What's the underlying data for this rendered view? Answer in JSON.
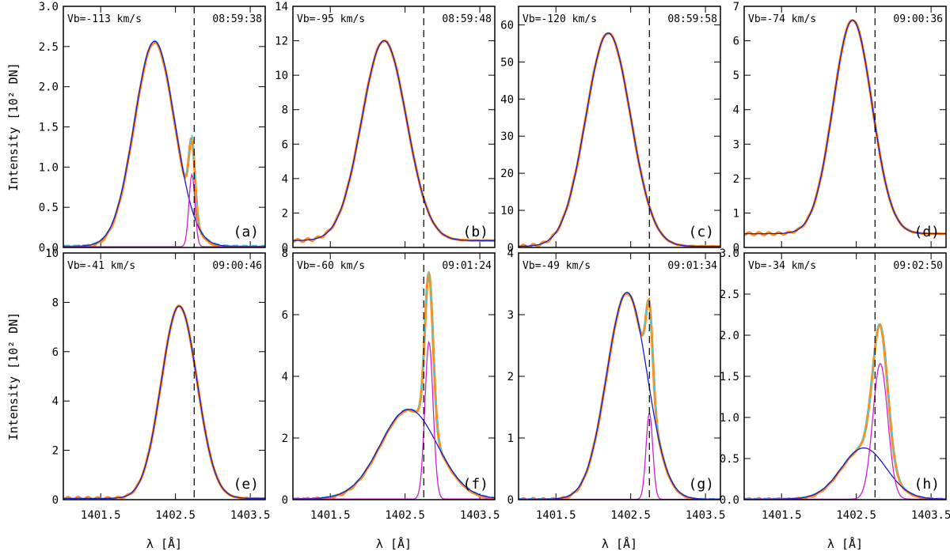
{
  "figure": {
    "xlabel": "λ [Å]",
    "ylabel": "Intensity [10² DN]",
    "x_tick_labels": [
      "1401.5",
      "1402.5",
      "1403.5"
    ],
    "colors": {
      "observed": "#ff8c1a",
      "fit_total": "#3fd0e0",
      "component_blue": "#1a1acc",
      "component_red": "#cc22cc",
      "dashed": "#000000"
    }
  },
  "chart_data": [
    {
      "type": "line",
      "panel": "(a)",
      "vb": "Vb=-113 km/s",
      "time": "08:59:38",
      "ylim": [
        0,
        3.0
      ],
      "yticks": [
        "0.0",
        "0.5",
        "1.0",
        "1.5",
        "2.0",
        "2.5",
        "3.0"
      ],
      "xlim": [
        1401.0,
        1403.7
      ],
      "xlabel": "λ [Å]",
      "ylabel": "Intensity [10² DN]",
      "dashed_x": 1402.75,
      "baseline": 0.05,
      "blue": {
        "amp": 2.55,
        "center": 1402.22,
        "width": 0.27
      },
      "red": {
        "amp": 0.9,
        "center": 1402.72,
        "width": 0.04
      },
      "offset": 0.0,
      "series": [
        {
          "name": "observed",
          "color": "#ff8c1a"
        },
        {
          "name": "fit_total",
          "color": "#3fd0e0"
        },
        {
          "name": "component_blue",
          "color": "#1a1acc"
        },
        {
          "name": "component_red",
          "color": "#cc22cc"
        }
      ]
    },
    {
      "type": "line",
      "panel": "(b)",
      "vb": "Vb=-95 km/s",
      "time": "08:59:48",
      "ylim": [
        0,
        14
      ],
      "yticks": [
        "0",
        "2",
        "4",
        "6",
        "8",
        "10",
        "12",
        "14"
      ],
      "xlim": [
        1401.0,
        1403.7
      ],
      "dashed_x": 1402.75,
      "baseline": 0.4,
      "blue": {
        "amp": 11.6,
        "center": 1402.22,
        "width": 0.3
      },
      "red": null,
      "offset": 0.4,
      "series": [
        {
          "name": "observed",
          "color": "#ff8c1a"
        },
        {
          "name": "component_blue",
          "color": "#1a1acc"
        }
      ]
    },
    {
      "type": "line",
      "panel": "(c)",
      "vb": "Vb=-120 km/s",
      "time": "08:59:58",
      "ylim": [
        0,
        65
      ],
      "yticks": [
        "0",
        "10",
        "20",
        "30",
        "40",
        "50",
        "60"
      ],
      "xlim": [
        1401.0,
        1403.7
      ],
      "dashed_x": 1402.75,
      "baseline": 0.3,
      "blue": {
        "amp": 57.5,
        "center": 1402.2,
        "width": 0.3
      },
      "red": null,
      "offset": 0.3,
      "series": [
        {
          "name": "observed",
          "color": "#ff8c1a"
        },
        {
          "name": "component_blue",
          "color": "#1a1acc"
        }
      ]
    },
    {
      "type": "line",
      "panel": "(d)",
      "vb": "Vb=-74 km/s",
      "time": "09:00:36",
      "ylim": [
        0,
        7
      ],
      "yticks": [
        "0",
        "1",
        "2",
        "3",
        "4",
        "5",
        "6",
        "7"
      ],
      "xlim": [
        1401.0,
        1403.7
      ],
      "dashed_x": 1402.75,
      "baseline": 0.4,
      "blue": {
        "amp": 6.2,
        "center": 1402.45,
        "width": 0.26
      },
      "red": null,
      "offset": 0.4,
      "series": [
        {
          "name": "observed",
          "color": "#ff8c1a"
        },
        {
          "name": "component_blue",
          "color": "#1a1acc"
        }
      ]
    },
    {
      "type": "line",
      "panel": "(e)",
      "vb": "Vb=-41 km/s",
      "time": "09:00:46",
      "ylim": [
        0,
        10
      ],
      "yticks": [
        "0",
        "2",
        "4",
        "6",
        "8",
        "10"
      ],
      "xlim": [
        1401.0,
        1403.7
      ],
      "dashed_x": 1402.75,
      "baseline": 0.1,
      "blue": {
        "amp": 7.8,
        "center": 1402.55,
        "width": 0.24
      },
      "red": null,
      "offset": 0.05,
      "series": [
        {
          "name": "observed",
          "color": "#ff8c1a"
        },
        {
          "name": "component_blue",
          "color": "#1a1acc"
        }
      ]
    },
    {
      "type": "line",
      "panel": "(f)",
      "vb": "Vb=-60 km/s",
      "time": "09:01:24",
      "ylim": [
        0,
        8
      ],
      "yticks": [
        "0",
        "2",
        "4",
        "6",
        "8"
      ],
      "xlim": [
        1401.0,
        1403.7
      ],
      "dashed_x": 1402.75,
      "baseline": 0.1,
      "blue": {
        "amp": 2.9,
        "center": 1402.55,
        "width": 0.38
      },
      "red": {
        "amp": 5.1,
        "center": 1402.82,
        "width": 0.055
      },
      "offset": 0.0,
      "series": [
        {
          "name": "observed",
          "color": "#ff8c1a"
        },
        {
          "name": "fit_total",
          "color": "#3fd0e0"
        },
        {
          "name": "component_blue",
          "color": "#1a1acc"
        },
        {
          "name": "component_red",
          "color": "#cc22cc"
        }
      ]
    },
    {
      "type": "line",
      "panel": "(g)",
      "vb": "Vb=-49 km/s",
      "time": "09:01:34",
      "ylim": [
        0,
        4
      ],
      "yticks": [
        "0",
        "1",
        "2",
        "3",
        "4"
      ],
      "xlim": [
        1401.0,
        1403.7
      ],
      "dashed_x": 1402.75,
      "baseline": 0.03,
      "blue": {
        "amp": 3.35,
        "center": 1402.45,
        "width": 0.27
      },
      "red": {
        "amp": 1.4,
        "center": 1402.75,
        "width": 0.045
      },
      "offset": 0.0,
      "series": [
        {
          "name": "observed",
          "color": "#ff8c1a"
        },
        {
          "name": "fit_total",
          "color": "#3fd0e0"
        },
        {
          "name": "component_blue",
          "color": "#1a1acc"
        },
        {
          "name": "component_red",
          "color": "#cc22cc"
        }
      ]
    },
    {
      "type": "line",
      "panel": "(h)",
      "vb": "Vb=-34 km/s",
      "time": "09:02:50",
      "ylim": [
        0,
        3.0
      ],
      "yticks": [
        "0.0",
        "0.5",
        "1.0",
        "1.5",
        "2.0",
        "2.5",
        "3.0"
      ],
      "xlim": [
        1401.0,
        1403.7
      ],
      "dashed_x": 1402.75,
      "baseline": 0.03,
      "blue": {
        "amp": 0.62,
        "center": 1402.6,
        "width": 0.3
      },
      "red": {
        "amp": 1.65,
        "center": 1402.82,
        "width": 0.1
      },
      "offset": 0.0,
      "series": [
        {
          "name": "observed",
          "color": "#ff8c1a"
        },
        {
          "name": "fit_total",
          "color": "#3fd0e0"
        },
        {
          "name": "component_blue",
          "color": "#1a1acc"
        },
        {
          "name": "component_red",
          "color": "#cc22cc"
        }
      ]
    }
  ]
}
